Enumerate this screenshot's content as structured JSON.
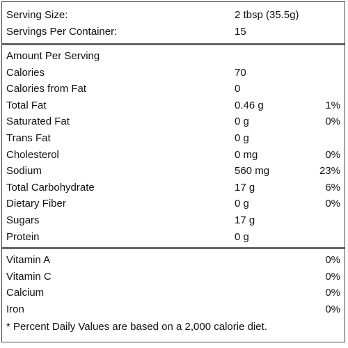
{
  "serving": {
    "rows": [
      {
        "name": "Serving Size:",
        "amount": "2 tbsp (35.5g)"
      },
      {
        "name": "Servings Per Container:",
        "amount": "15"
      }
    ]
  },
  "nutrients": {
    "heading": "Amount Per Serving",
    "rows": [
      {
        "name": "Calories",
        "amount": "70"
      },
      {
        "name": "Calories from Fat",
        "amount": "0"
      },
      {
        "name": "Total Fat",
        "amount": "0.46 g",
        "dv": "1%"
      },
      {
        "name": "Saturated Fat",
        "amount": "0 g",
        "dv": "0%"
      },
      {
        "name": "Trans Fat",
        "amount": "0 g"
      },
      {
        "name": "Cholesterol",
        "amount": "0 mg",
        "dv": "0%"
      },
      {
        "name": "Sodium",
        "amount": "560 mg",
        "dv": "23%"
      },
      {
        "name": "Total Carbohydrate",
        "amount": "17 g",
        "dv": "6%"
      },
      {
        "name": "Dietary Fiber",
        "amount": "0 g",
        "dv": "0%"
      },
      {
        "name": "Sugars",
        "amount": "17 g"
      },
      {
        "name": "Protein",
        "amount": "0 g"
      }
    ]
  },
  "vitamins": {
    "rows": [
      {
        "name": "Vitamin A",
        "dv": "0%"
      },
      {
        "name": "Vitamin C",
        "dv": "0%"
      },
      {
        "name": "Calcium",
        "dv": "0%"
      },
      {
        "name": "Iron",
        "dv": "0%"
      }
    ]
  },
  "footnote": "* Percent Daily Values are based on a 2,000 calorie diet."
}
